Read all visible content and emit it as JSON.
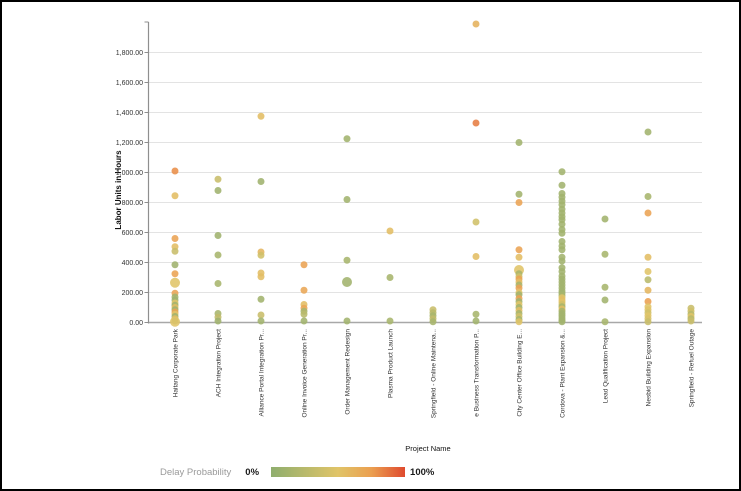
{
  "chart_data": {
    "type": "scatter",
    "title": "",
    "xlabel": "Project Name",
    "ylabel": "Labor Units in Hours",
    "ylim": [
      0,
      2000
    ],
    "ytick_step": 200,
    "ytick_labels": [
      "0.00",
      "200.00",
      "400.00",
      "600.00",
      "800.00",
      "1,000.00",
      "1,200.00",
      "1,400.00",
      "1,600.00",
      "1,800.00"
    ],
    "grid": "horizontal",
    "legend_position": "bottom-left",
    "color_scale": {
      "label": "Delay Probability",
      "min_label": "0%",
      "max_label": "100%",
      "stops": [
        "#8fae6e",
        "#e0c468",
        "#eb9f50",
        "#df4a2e"
      ],
      "stop_positions": [
        0,
        0.5,
        0.75,
        1
      ]
    },
    "point_note": "points are [labor_units_hours, delay_probability_0to1, optional_radius_px]",
    "series": [
      {
        "project": "Haitang Corporate Park",
        "points": [
          [
            1010,
            0.8
          ],
          [
            845,
            0.55
          ],
          [
            560,
            0.72
          ],
          [
            505,
            0.55
          ],
          [
            475,
            0.35
          ],
          [
            385,
            0.1
          ],
          [
            325,
            0.72
          ],
          [
            265,
            0.5,
            5
          ],
          [
            195,
            0.72
          ],
          [
            170,
            0.12
          ],
          [
            150,
            0.1
          ],
          [
            130,
            0.5
          ],
          [
            115,
            0.12
          ],
          [
            100,
            0.55
          ],
          [
            85,
            0.1
          ],
          [
            70,
            0.72
          ],
          [
            55,
            0.5
          ],
          [
            40,
            0.1
          ],
          [
            25,
            0.55
          ],
          [
            10,
            0.15
          ],
          [
            5,
            0.5,
            5
          ]
        ]
      },
      {
        "project": "ACH Integration Project",
        "points": [
          [
            955,
            0.35
          ],
          [
            880,
            0.1
          ],
          [
            580,
            0.1
          ],
          [
            450,
            0.15
          ],
          [
            260,
            0.15
          ],
          [
            60,
            0.15
          ],
          [
            35,
            0.3
          ],
          [
            10,
            0.1
          ]
        ]
      },
      {
        "project": "Alliance Portal Integration Pr...",
        "points": [
          [
            1375,
            0.55
          ],
          [
            940,
            0.1
          ],
          [
            470,
            0.6
          ],
          [
            448,
            0.4
          ],
          [
            330,
            0.55
          ],
          [
            305,
            0.55
          ],
          [
            155,
            0.12
          ],
          [
            50,
            0.35
          ],
          [
            10,
            0.12
          ]
        ]
      },
      {
        "project": "Online Invoice Generation Pr...",
        "points": [
          [
            385,
            0.72
          ],
          [
            215,
            0.7
          ],
          [
            120,
            0.55
          ],
          [
            95,
            0.7
          ],
          [
            75,
            0.15
          ],
          [
            55,
            0.25
          ],
          [
            10,
            0.12
          ]
        ]
      },
      {
        "project": "Order Management Redesign",
        "points": [
          [
            1225,
            0.12
          ],
          [
            820,
            0.12
          ],
          [
            415,
            0.15
          ],
          [
            270,
            0.12,
            5
          ],
          [
            10,
            0.12
          ]
        ]
      },
      {
        "project": "Plasma Product Launch",
        "points": [
          [
            610,
            0.55
          ],
          [
            300,
            0.15
          ],
          [
            10,
            0.15
          ]
        ]
      },
      {
        "project": "Springfield - Online Maintena...",
        "points": [
          [
            85,
            0.35
          ],
          [
            65,
            0.25
          ],
          [
            45,
            0.15
          ],
          [
            25,
            0.3
          ],
          [
            5,
            0.15
          ]
        ]
      },
      {
        "project": "e Business Transformation P...",
        "points": [
          [
            1990,
            0.62
          ],
          [
            1330,
            0.85
          ],
          [
            670,
            0.4
          ],
          [
            440,
            0.55
          ],
          [
            55,
            0.15
          ],
          [
            10,
            0.12
          ]
        ]
      },
      {
        "project": "City Center Office Building E...",
        "points": [
          [
            1200,
            0.12
          ],
          [
            855,
            0.12
          ],
          [
            800,
            0.72
          ],
          [
            485,
            0.72
          ],
          [
            435,
            0.55
          ],
          [
            350,
            0.5,
            5
          ],
          [
            325,
            0.15
          ],
          [
            305,
            0.4
          ],
          [
            290,
            0.72
          ],
          [
            270,
            0.55
          ],
          [
            250,
            0.15
          ],
          [
            230,
            0.72
          ],
          [
            200,
            0.5
          ],
          [
            185,
            0.12
          ],
          [
            160,
            0.72
          ],
          [
            140,
            0.12
          ],
          [
            120,
            0.5
          ],
          [
            100,
            0.12
          ],
          [
            80,
            0.55
          ],
          [
            60,
            0.15
          ],
          [
            40,
            0.4
          ],
          [
            20,
            0.15
          ],
          [
            5,
            0.5
          ]
        ]
      },
      {
        "project": "Cordova - Plant Expansion &...",
        "points": [
          [
            1005,
            0.12
          ],
          [
            915,
            0.12
          ],
          [
            860,
            0.12
          ],
          [
            835,
            0.12
          ],
          [
            810,
            0.12
          ],
          [
            785,
            0.12
          ],
          [
            755,
            0.12
          ],
          [
            730,
            0.12
          ],
          [
            705,
            0.12
          ],
          [
            685,
            0.12
          ],
          [
            655,
            0.12
          ],
          [
            620,
            0.12
          ],
          [
            595,
            0.12
          ],
          [
            540,
            0.12
          ],
          [
            510,
            0.12
          ],
          [
            485,
            0.12
          ],
          [
            435,
            0.12
          ],
          [
            410,
            0.12
          ],
          [
            365,
            0.12
          ],
          [
            340,
            0.12
          ],
          [
            310,
            0.12
          ],
          [
            290,
            0.12
          ],
          [
            270,
            0.12
          ],
          [
            250,
            0.12
          ],
          [
            230,
            0.12
          ],
          [
            210,
            0.12
          ],
          [
            195,
            0.12
          ],
          [
            180,
            0.15
          ],
          [
            165,
            0.5
          ],
          [
            150,
            0.55
          ],
          [
            135,
            0.5
          ],
          [
            120,
            0.4
          ],
          [
            105,
            0.15
          ],
          [
            90,
            0.55
          ],
          [
            75,
            0.15
          ],
          [
            60,
            0.12
          ],
          [
            45,
            0.12
          ],
          [
            30,
            0.12
          ],
          [
            15,
            0.12
          ],
          [
            5,
            0.12
          ]
        ]
      },
      {
        "project": "Lead Qualification Project",
        "points": [
          [
            690,
            0.12
          ],
          [
            455,
            0.15
          ],
          [
            235,
            0.15
          ],
          [
            150,
            0.12
          ],
          [
            5,
            0.15
          ]
        ]
      },
      {
        "project": "Nesbid Building Expansion",
        "points": [
          [
            1270,
            0.12
          ],
          [
            840,
            0.15
          ],
          [
            730,
            0.72
          ],
          [
            435,
            0.55
          ],
          [
            340,
            0.5
          ],
          [
            285,
            0.25
          ],
          [
            215,
            0.6
          ],
          [
            140,
            0.75
          ],
          [
            105,
            0.5
          ],
          [
            85,
            0.5
          ],
          [
            65,
            0.4
          ],
          [
            45,
            0.5
          ],
          [
            25,
            0.45
          ],
          [
            5,
            0.35
          ]
        ]
      },
      {
        "project": "Springfield - Refuel Outage",
        "points": [
          [
            95,
            0.35
          ],
          [
            75,
            0.4
          ],
          [
            55,
            0.25
          ],
          [
            40,
            0.5
          ],
          [
            25,
            0.25
          ],
          [
            10,
            0.35
          ]
        ]
      }
    ]
  },
  "colors": {
    "gridline": "#e3e3e3",
    "axis_line": "#8f8f8f",
    "baseline": "#a8a8a8",
    "tick_text": "#333333",
    "axis_title_text": "#111111",
    "legend_label_text": "#9a9a9a"
  }
}
